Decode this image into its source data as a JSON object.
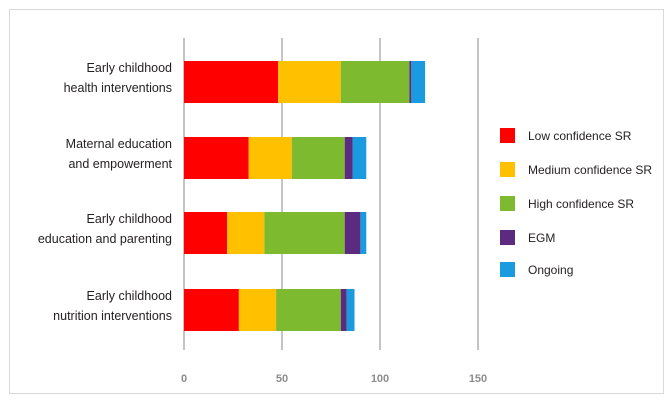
{
  "chart_data": {
    "type": "bar",
    "orientation": "horizontal",
    "stacked": true,
    "categories": [
      [
        "Early childhood",
        "health interventions"
      ],
      [
        "Maternal education",
        "and empowerment"
      ],
      [
        "Early childhood",
        "education and parenting"
      ],
      [
        "Early childhood",
        "nutrition interventions"
      ]
    ],
    "series": [
      {
        "name": "Low confidence SR",
        "color": "#ff0000",
        "values": [
          48,
          33,
          22,
          28
        ]
      },
      {
        "name": "Medium confidence SR",
        "color": "#ffc000",
        "values": [
          32,
          22,
          19,
          19
        ]
      },
      {
        "name": "High confidence SR",
        "color": "#7dba2f",
        "values": [
          35,
          27,
          41,
          33
        ]
      },
      {
        "name": "EGM",
        "color": "#5c2a7e",
        "values": [
          1,
          4,
          8,
          3
        ]
      },
      {
        "name": "Ongoing",
        "color": "#1a9be0",
        "values": [
          7,
          7,
          3,
          4
        ]
      }
    ],
    "xlim": [
      0,
      150
    ],
    "xticks": [
      "0",
      "50",
      "100",
      "150"
    ],
    "grid": "vertical",
    "legend": "right",
    "title": "",
    "xlabel": "",
    "ylabel": ""
  }
}
